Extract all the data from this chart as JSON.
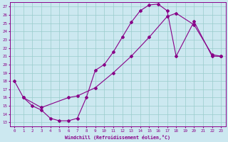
{
  "xlabel": "Windchill (Refroidissement éolien,°C)",
  "xlim": [
    -0.5,
    23.5
  ],
  "ylim": [
    12.5,
    27.5
  ],
  "xticks": [
    0,
    1,
    2,
    3,
    4,
    5,
    6,
    7,
    8,
    9,
    10,
    11,
    12,
    13,
    14,
    15,
    16,
    17,
    18,
    19,
    20,
    21,
    22,
    23
  ],
  "yticks": [
    13,
    14,
    15,
    16,
    17,
    18,
    19,
    20,
    21,
    22,
    23,
    24,
    25,
    26,
    27
  ],
  "bg_color": "#cce8f0",
  "line_color": "#880088",
  "grid_color": "#99cccc",
  "line1_x": [
    0,
    1,
    2,
    3,
    4,
    5,
    6,
    7,
    8,
    9,
    10,
    11,
    12,
    13,
    14,
    15,
    16,
    17,
    18,
    20,
    22,
    23
  ],
  "line1_y": [
    18,
    16,
    15,
    14.5,
    13.5,
    13.2,
    13.2,
    13.5,
    16.0,
    19.3,
    20.0,
    21.5,
    23.3,
    25.1,
    26.5,
    27.2,
    27.3,
    26.5,
    21.0,
    25.2,
    21.0,
    21.0
  ],
  "line2_x": [
    1,
    3,
    6,
    7,
    9,
    11,
    13,
    15,
    17,
    18,
    20,
    22,
    23
  ],
  "line2_y": [
    16.0,
    14.8,
    16.0,
    16.2,
    17.2,
    19.0,
    21.0,
    23.3,
    25.8,
    26.2,
    24.8,
    21.2,
    21.0
  ]
}
